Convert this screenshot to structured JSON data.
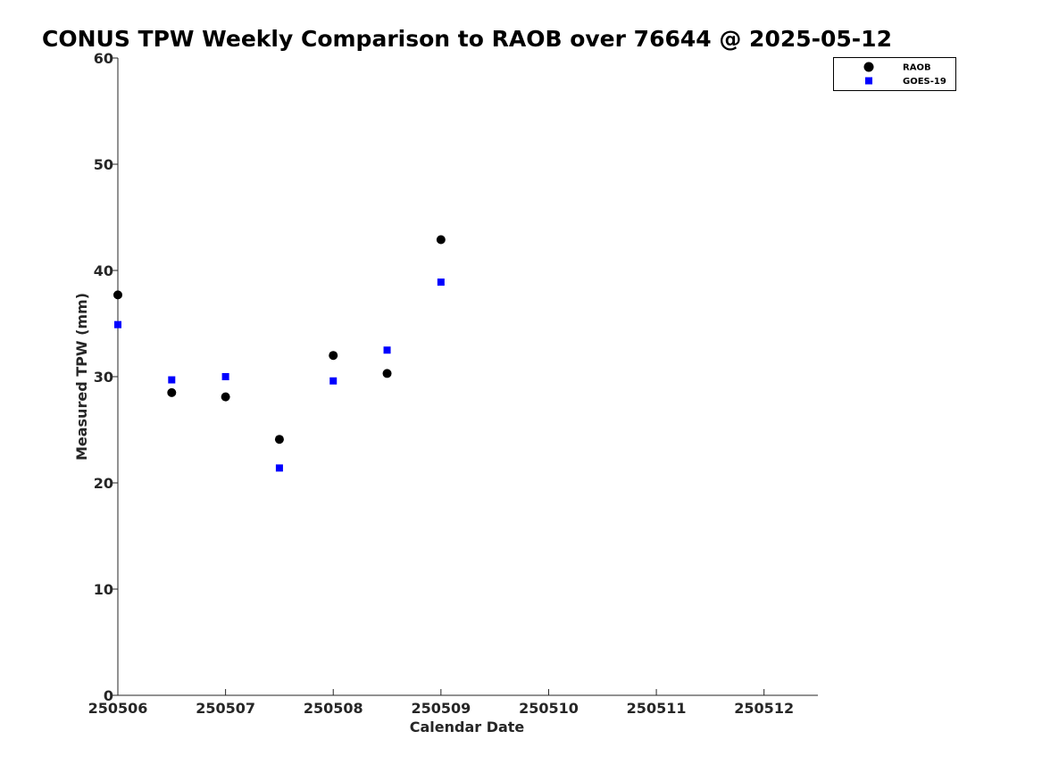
{
  "chart_data": {
    "type": "scatter",
    "title": "CONUS TPW Weekly Comparison to RAOB over 76644 @ 2025-05-12",
    "xlabel": "Calendar Date",
    "ylabel": "Measured TPW (mm)",
    "xlim": [
      250506,
      250512.5
    ],
    "ylim": [
      0,
      60
    ],
    "xticks": [
      250506,
      250507,
      250508,
      250509,
      250510,
      250511,
      250512
    ],
    "xtick_labels": [
      "250506",
      "250507",
      "250508",
      "250509",
      "250510",
      "250511",
      "250512"
    ],
    "yticks": [
      0,
      10,
      20,
      30,
      40,
      50,
      60
    ],
    "ytick_labels": [
      "0",
      "10",
      "20",
      "30",
      "40",
      "50",
      "60"
    ],
    "grid": false,
    "legend_position": "top-right",
    "series": [
      {
        "name": "RAOB",
        "marker": "circle",
        "color": "#000000",
        "x": [
          250506,
          250506.5,
          250507,
          250507.5,
          250508,
          250508.5,
          250509
        ],
        "y": [
          37.7,
          28.5,
          28.1,
          24.1,
          32.0,
          30.3,
          42.9
        ]
      },
      {
        "name": "GOES-19",
        "marker": "square",
        "color": "#0000ff",
        "x": [
          250506,
          250506.5,
          250507,
          250507.5,
          250508,
          250508.5,
          250509
        ],
        "y": [
          34.9,
          29.7,
          30.0,
          21.4,
          29.6,
          32.5,
          38.9
        ]
      }
    ]
  }
}
